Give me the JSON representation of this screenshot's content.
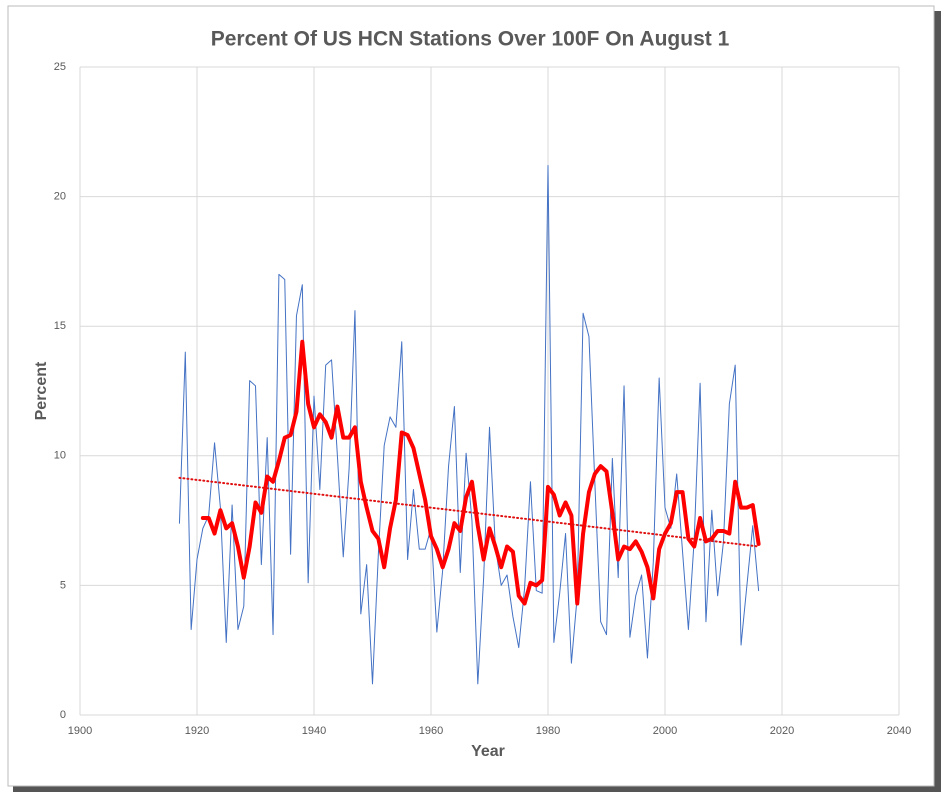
{
  "chart_data": {
    "type": "line",
    "title": "Percent Of US HCN Stations Over 100F On August 1",
    "x_label": "Year",
    "y_label": "Percent",
    "xlim": [
      1900,
      2040
    ],
    "xticks": [
      1900,
      1920,
      1940,
      1960,
      1980,
      2000,
      2020,
      2040
    ],
    "ylim": [
      0,
      25
    ],
    "yticks": [
      0,
      5,
      10,
      15,
      20,
      25
    ],
    "grid": true,
    "series": [
      {
        "color": "#4472c4",
        "width": 1,
        "x": [
          1917,
          1918,
          1919,
          1920,
          1921,
          1922,
          1923,
          1924,
          1925,
          1926,
          1927,
          1928,
          1929,
          1930,
          1931,
          1932,
          1933,
          1934,
          1935,
          1936,
          1937,
          1938,
          1939,
          1940,
          1941,
          1942,
          1943,
          1944,
          1945,
          1946,
          1947,
          1948,
          1949,
          1950,
          1951,
          1952,
          1953,
          1954,
          1955,
          1956,
          1957,
          1958,
          1959,
          1960,
          1961,
          1962,
          1963,
          1964,
          1965,
          1966,
          1967,
          1968,
          1969,
          1970,
          1971,
          1972,
          1973,
          1974,
          1975,
          1976,
          1977,
          1978,
          1979,
          1980,
          1981,
          1982,
          1983,
          1984,
          1985,
          1986,
          1987,
          1988,
          1989,
          1990,
          1991,
          1992,
          1993,
          1994,
          1995,
          1996,
          1997,
          1998,
          1999,
          2000,
          2001,
          2002,
          2003,
          2004,
          2005,
          2006,
          2007,
          2008,
          2009,
          2010,
          2011,
          2012,
          2013,
          2014,
          2015,
          2016
        ],
        "values": [
          7.4,
          14.0,
          3.3,
          6.0,
          7.2,
          7.7,
          10.5,
          8.0,
          2.8,
          8.1,
          3.3,
          4.2,
          12.9,
          12.7,
          5.8,
          10.7,
          3.1,
          17.0,
          16.8,
          6.2,
          15.4,
          16.6,
          5.1,
          12.3,
          8.7,
          13.5,
          13.7,
          10.0,
          6.1,
          9.5,
          15.6,
          3.9,
          5.8,
          1.2,
          6.2,
          10.4,
          11.5,
          11.1,
          14.4,
          6.0,
          8.7,
          6.4,
          6.4,
          7.2,
          3.2,
          5.6,
          9.6,
          11.9,
          5.5,
          10.1,
          7.5,
          1.2,
          5.3,
          11.1,
          6.5,
          5.0,
          5.4,
          3.8,
          2.6,
          4.9,
          9.0,
          4.8,
          4.7,
          21.2,
          2.8,
          4.7,
          7.0,
          2.0,
          4.6,
          15.5,
          14.6,
          9.0,
          3.6,
          3.1,
          9.9,
          5.3,
          12.7,
          3.0,
          4.6,
          5.4,
          2.2,
          5.9,
          13.0,
          8.0,
          7.2,
          9.3,
          6.3,
          3.3,
          6.8,
          12.8,
          3.6,
          7.9,
          4.6,
          6.7,
          12.0,
          13.5,
          2.7,
          5.0,
          7.3,
          4.8
        ]
      },
      {
        "color": "#ff0000",
        "width": 4,
        "x": [
          1921,
          1922,
          1923,
          1924,
          1925,
          1926,
          1927,
          1928,
          1929,
          1930,
          1931,
          1932,
          1933,
          1934,
          1935,
          1936,
          1937,
          1938,
          1939,
          1940,
          1941,
          1942,
          1943,
          1944,
          1945,
          1946,
          1947,
          1948,
          1949,
          1950,
          1951,
          1952,
          1953,
          1954,
          1955,
          1956,
          1957,
          1958,
          1959,
          1960,
          1961,
          1962,
          1963,
          1964,
          1965,
          1966,
          1967,
          1968,
          1969,
          1970,
          1971,
          1972,
          1973,
          1974,
          1975,
          1976,
          1977,
          1978,
          1979,
          1980,
          1981,
          1982,
          1983,
          1984,
          1985,
          1986,
          1987,
          1988,
          1989,
          1990,
          1991,
          1992,
          1993,
          1994,
          1995,
          1996,
          1997,
          1998,
          1999,
          2000,
          2001,
          2002,
          2003,
          2004,
          2005,
          2006,
          2007,
          2008,
          2009,
          2010,
          2011,
          2012,
          2013,
          2014,
          2015,
          2016
        ],
        "values": [
          7.6,
          7.6,
          7.0,
          7.9,
          7.2,
          7.4,
          6.5,
          5.3,
          6.5,
          8.2,
          7.8,
          9.2,
          9.0,
          9.8,
          10.7,
          10.8,
          11.7,
          14.4,
          12.0,
          11.1,
          11.6,
          11.3,
          10.7,
          11.9,
          10.7,
          10.7,
          11.1,
          9.0,
          8.0,
          7.1,
          6.8,
          5.7,
          7.2,
          8.3,
          10.9,
          10.8,
          10.3,
          9.3,
          8.3,
          6.9,
          6.4,
          5.7,
          6.4,
          7.4,
          7.1,
          8.4,
          9.0,
          7.3,
          6.0,
          7.2,
          6.5,
          5.7,
          6.5,
          6.3,
          4.6,
          4.3,
          5.1,
          5.0,
          5.2,
          8.8,
          8.5,
          7.7,
          8.2,
          7.7,
          4.3,
          7.0,
          8.6,
          9.3,
          9.6,
          9.4,
          7.8,
          6.0,
          6.5,
          6.4,
          6.7,
          6.3,
          5.7,
          4.5,
          6.4,
          7.0,
          7.4,
          8.6,
          8.6,
          6.8,
          6.5,
          7.6,
          6.7,
          6.8,
          7.1,
          7.1,
          7.0,
          9.0,
          8.0,
          8.0,
          8.1,
          6.6
        ]
      },
      {
        "color": "#e01010",
        "width": 2,
        "dashed": true,
        "x": [
          1917,
          2016
        ],
        "values": [
          9.15,
          6.5
        ]
      }
    ]
  }
}
